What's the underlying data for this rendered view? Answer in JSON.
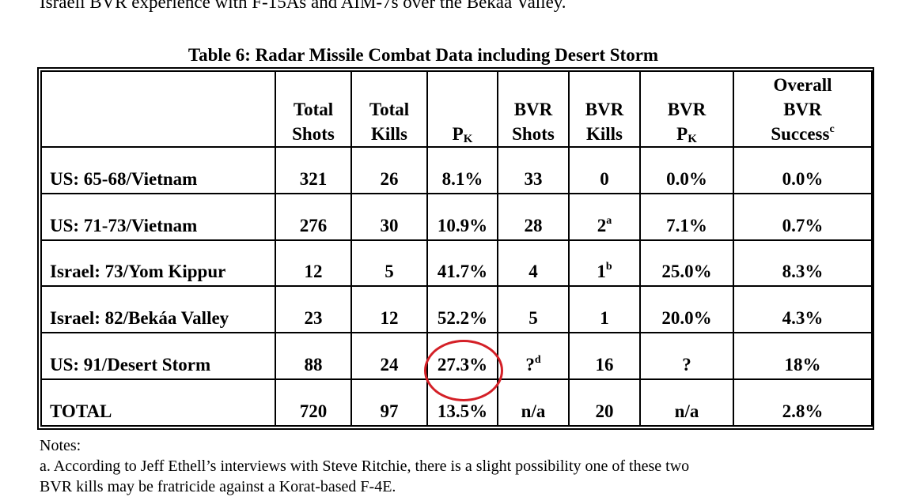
{
  "top_text": "Israeli BVR experience with F-15As and AIM-7s over the Bekáa Valley.",
  "table_title": "Table 6:  Radar Missile Combat Data including Desert Storm",
  "headers": {
    "total_shots_1": "Total",
    "total_shots_2": "Shots",
    "total_kills_1": "Total",
    "total_kills_2": "Kills",
    "pk_main": "P",
    "pk_sub": "K",
    "bvr_shots_1": "BVR",
    "bvr_shots_2": "Shots",
    "bvr_kills_1": "BVR",
    "bvr_kills_2": "Kills",
    "bvr_pk_1": "BVR",
    "bvr_pk_main": "P",
    "bvr_pk_sub": "K",
    "overall_1": "Overall",
    "overall_2": "BVR",
    "overall_3": "Success",
    "overall_sup": "c"
  },
  "rows": [
    {
      "label": "US: 65-68/Vietnam",
      "total_shots": "321",
      "total_kills": "26",
      "pk": "8.1%",
      "bvr_shots": "33",
      "bvr_shots_sup": "",
      "bvr_kills": "0",
      "bvr_kills_sup": "",
      "bvr_pk": "0.0%",
      "overall": "0.0%"
    },
    {
      "label": "US: 71-73/Vietnam",
      "total_shots": "276",
      "total_kills": "30",
      "pk": "10.9%",
      "bvr_shots": "28",
      "bvr_shots_sup": "",
      "bvr_kills": "2",
      "bvr_kills_sup": "a",
      "bvr_pk": "7.1%",
      "overall": "0.7%"
    },
    {
      "label": "Israel: 73/Yom Kippur",
      "total_shots": "12",
      "total_kills": "5",
      "pk": "41.7%",
      "bvr_shots": "4",
      "bvr_shots_sup": "",
      "bvr_kills": "1",
      "bvr_kills_sup": "b",
      "bvr_pk": "25.0%",
      "overall": "8.3%"
    },
    {
      "label": "Israel: 82/Bekáa Valley",
      "total_shots": "23",
      "total_kills": "12",
      "pk": "52.2%",
      "bvr_shots": "5",
      "bvr_shots_sup": "",
      "bvr_kills": "1",
      "bvr_kills_sup": "",
      "bvr_pk": "20.0%",
      "overall": "4.3%"
    },
    {
      "label": "US:  91/Desert Storm",
      "total_shots": "88",
      "total_kills": "24",
      "pk": "27.3%",
      "bvr_shots": "?",
      "bvr_shots_sup": "d",
      "bvr_kills": "16",
      "bvr_kills_sup": "",
      "bvr_pk": "?",
      "overall": "18%"
    },
    {
      "label": "TOTAL",
      "total_shots": "720",
      "total_kills": "97",
      "pk": "13.5%",
      "bvr_shots": "n/a",
      "bvr_shots_sup": "",
      "bvr_kills": "20",
      "bvr_kills_sup": "",
      "bvr_pk": "n/a",
      "overall": "2.8%"
    }
  ],
  "notes": {
    "heading": "Notes:",
    "line_a1": "a. According to Jeff Ethell’s interviews with Steve Ritchie, there is a slight possibility one of these two",
    "line_a2": "BVR kills may be fratricide against a Korat-based F-4E."
  },
  "highlight_color": "#d42027"
}
